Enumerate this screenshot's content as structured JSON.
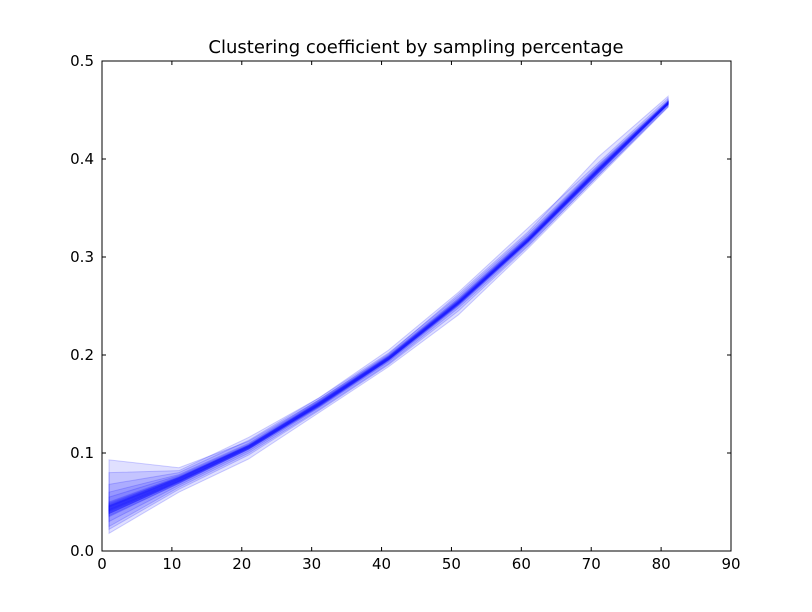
{
  "chart_data": {
    "type": "line",
    "title": "Clustering coefficient by sampling percentage",
    "xlabel": "",
    "ylabel": "",
    "xlim": [
      0,
      90
    ],
    "ylim": [
      0,
      0.5
    ],
    "x_ticks": [
      0,
      10,
      20,
      30,
      40,
      50,
      60,
      70,
      80,
      90
    ],
    "y_ticks": [
      0.0,
      0.1,
      0.2,
      0.3,
      0.4,
      0.5
    ],
    "x_tick_labels": [
      "0",
      "10",
      "20",
      "30",
      "40",
      "50",
      "60",
      "70",
      "80",
      "90"
    ],
    "y_tick_labels": [
      "0.0",
      "0.1",
      "0.2",
      "0.3",
      "0.4",
      "0.5"
    ],
    "grid": false,
    "legend": "none",
    "x": [
      1,
      11,
      21,
      31,
      41,
      51,
      61,
      71,
      81
    ],
    "band_color": "#0000ff",
    "band_opacity": 0.12,
    "bands": [
      {
        "lower": [
          0.038,
          0.071,
          0.106,
          0.148,
          0.195,
          0.252,
          0.316,
          0.386,
          0.456
        ],
        "upper": [
          0.093,
          0.085,
          0.112,
          0.154,
          0.201,
          0.262,
          0.326,
          0.402,
          0.464
        ]
      },
      {
        "lower": [
          0.018,
          0.06,
          0.094,
          0.141,
          0.188,
          0.241,
          0.309,
          0.381,
          0.453
        ],
        "upper": [
          0.08,
          0.082,
          0.116,
          0.156,
          0.205,
          0.264,
          0.33,
          0.396,
          0.462
        ]
      },
      {
        "lower": [
          0.025,
          0.065,
          0.1,
          0.144,
          0.191,
          0.248,
          0.312,
          0.383,
          0.454
        ],
        "upper": [
          0.068,
          0.08,
          0.113,
          0.156,
          0.202,
          0.26,
          0.324,
          0.394,
          0.46
        ]
      },
      {
        "lower": [
          0.022,
          0.063,
          0.098,
          0.143,
          0.19,
          0.245,
          0.311,
          0.383,
          0.453
        ],
        "upper": [
          0.06,
          0.078,
          0.11,
          0.154,
          0.2,
          0.258,
          0.322,
          0.393,
          0.459
        ]
      },
      {
        "lower": [
          0.03,
          0.067,
          0.102,
          0.146,
          0.193,
          0.25,
          0.314,
          0.385,
          0.455
        ],
        "upper": [
          0.055,
          0.077,
          0.109,
          0.153,
          0.199,
          0.257,
          0.321,
          0.392,
          0.459
        ]
      },
      {
        "lower": [
          0.035,
          0.069,
          0.104,
          0.147,
          0.194,
          0.251,
          0.315,
          0.386,
          0.456
        ],
        "upper": [
          0.05,
          0.076,
          0.108,
          0.152,
          0.198,
          0.256,
          0.32,
          0.391,
          0.458
        ]
      },
      {
        "lower": [
          0.038,
          0.07,
          0.105,
          0.148,
          0.195,
          0.252,
          0.316,
          0.387,
          0.456
        ],
        "upper": [
          0.048,
          0.075,
          0.107,
          0.151,
          0.198,
          0.255,
          0.319,
          0.39,
          0.458
        ]
      },
      {
        "lower": [
          0.04,
          0.071,
          0.105,
          0.149,
          0.196,
          0.253,
          0.317,
          0.388,
          0.457
        ],
        "upper": [
          0.046,
          0.074,
          0.107,
          0.151,
          0.197,
          0.254,
          0.318,
          0.389,
          0.458
        ]
      },
      {
        "lower": [
          0.042,
          0.072,
          0.106,
          0.149,
          0.196,
          0.253,
          0.317,
          0.388,
          0.457
        ],
        "upper": [
          0.045,
          0.073,
          0.106,
          0.15,
          0.197,
          0.254,
          0.318,
          0.389,
          0.457
        ]
      },
      {
        "lower": [
          0.039,
          0.07,
          0.104,
          0.148,
          0.195,
          0.252,
          0.316,
          0.387,
          0.456
        ],
        "upper": [
          0.047,
          0.075,
          0.108,
          0.151,
          0.198,
          0.255,
          0.319,
          0.39,
          0.458
        ]
      },
      {
        "lower": [
          0.036,
          0.069,
          0.104,
          0.147,
          0.195,
          0.251,
          0.316,
          0.386,
          0.456
        ],
        "upper": [
          0.049,
          0.075,
          0.108,
          0.152,
          0.199,
          0.256,
          0.32,
          0.391,
          0.458
        ]
      },
      {
        "lower": [
          0.041,
          0.071,
          0.105,
          0.149,
          0.196,
          0.253,
          0.317,
          0.388,
          0.456
        ],
        "upper": [
          0.046,
          0.074,
          0.107,
          0.15,
          0.197,
          0.254,
          0.318,
          0.389,
          0.457
        ]
      }
    ]
  }
}
